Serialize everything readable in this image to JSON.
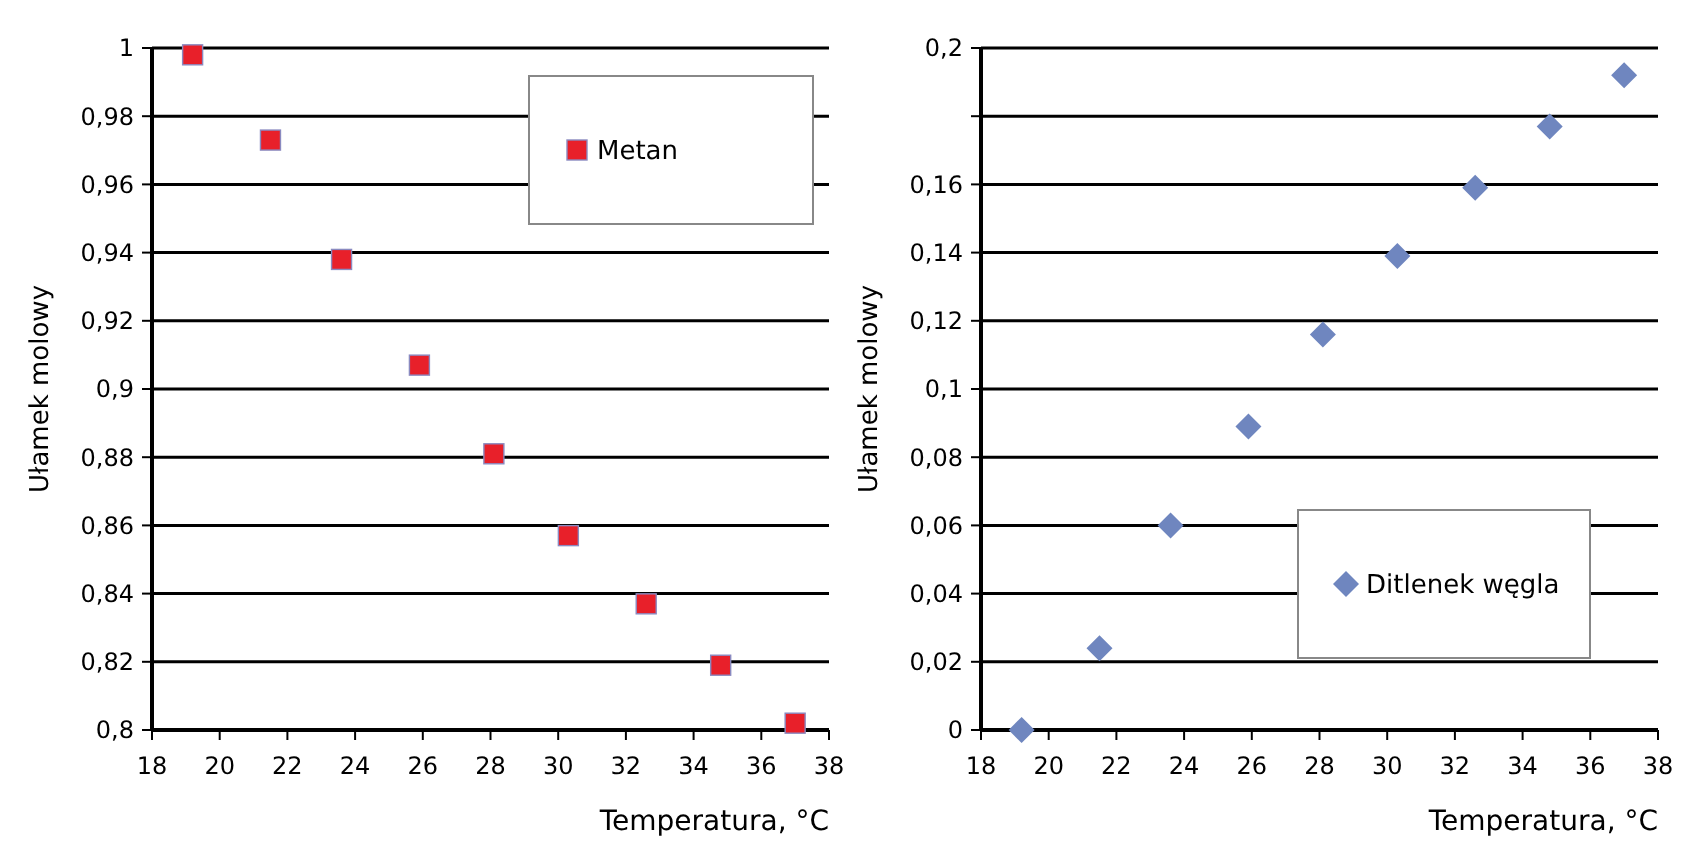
{
  "chart_data": [
    {
      "type": "scatter",
      "xlabel": "Temperatura, °C",
      "ylabel": "Ułamek molowy",
      "x": [
        19.2,
        21.5,
        23.6,
        25.9,
        28.1,
        30.3,
        32.6,
        34.8,
        37.0
      ],
      "series": [
        {
          "name": "Metan",
          "color": "#e8202a",
          "values": [
            0.998,
            0.973,
            0.938,
            0.907,
            0.881,
            0.857,
            0.837,
            0.819,
            0.802
          ]
        }
      ],
      "xlim": [
        18,
        38
      ],
      "xticks": [
        18,
        20,
        22,
        24,
        26,
        28,
        30,
        32,
        34,
        36,
        38
      ],
      "ylim": [
        0.8,
        1
      ],
      "yticks": [
        {
          "value": 0.8,
          "label": "0,8"
        },
        {
          "value": 0.82,
          "label": "0,82"
        },
        {
          "value": 0.84,
          "label": "0,84"
        },
        {
          "value": 0.86,
          "label": "0,86"
        },
        {
          "value": 0.88,
          "label": "0,88"
        },
        {
          "value": 0.9,
          "label": "0,9"
        },
        {
          "value": 0.92,
          "label": "0,92"
        },
        {
          "value": 0.94,
          "label": "0,94"
        },
        {
          "value": 0.96,
          "label": "0,96"
        },
        {
          "value": 0.98,
          "label": "0,98"
        },
        1
      ],
      "grid": "y",
      "legend": "top right",
      "marker": "square"
    },
    {
      "type": "scatter",
      "xlabel": "Temperatura, °C",
      "ylabel": "Ułamek molowy",
      "x": [
        19.2,
        21.5,
        23.6,
        25.9,
        28.1,
        30.3,
        32.6,
        34.8,
        37.0
      ],
      "series": [
        {
          "name": "Ditlenek węgla",
          "color": "#6f86bf",
          "values": [
            0,
            0.024,
            0.06,
            0.089,
            0.116,
            0.139,
            0.159,
            0.177,
            0.192
          ]
        }
      ],
      "xlim": [
        18,
        38
      ],
      "xticks": [
        18,
        20,
        22,
        24,
        26,
        28,
        30,
        32,
        34,
        36,
        38
      ],
      "ylim": [
        0,
        0.2
      ],
      "yticks": [
        0,
        {
          "value": 0.02,
          "label": "0,02"
        },
        {
          "value": 0.04,
          "label": "0,04"
        },
        {
          "value": 0.06,
          "label": "0,06"
        },
        {
          "value": 0.08,
          "label": "0,08"
        },
        {
          "value": 0.1,
          "label": "0,1"
        },
        {
          "value": 0.12,
          "label": "0,12"
        },
        {
          "value": 0.14,
          "label": "0,14"
        },
        {
          "value": 0.16,
          "label": "0,16"
        },
        {
          "value": 0.18,
          "label": null
        },
        {
          "value": 0.2,
          "label": "0,2"
        }
      ],
      "grid": "y",
      "legend": "bottom right",
      "marker": "diamond"
    }
  ]
}
